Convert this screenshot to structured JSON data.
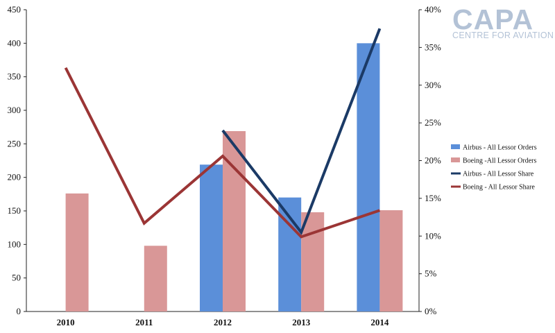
{
  "logo": {
    "main": "CAPA",
    "sub": "CENTRE FOR AVIATION"
  },
  "chart_data": {
    "type": "bar",
    "title": "",
    "categories": [
      "2010",
      "2011",
      "2012",
      "2013",
      "2014"
    ],
    "y_left": {
      "min": 0,
      "max": 450,
      "step": 50,
      "ticks": [
        "0",
        "50",
        "100",
        "150",
        "200",
        "250",
        "300",
        "350",
        "400",
        "450"
      ]
    },
    "y_right": {
      "min": 0,
      "max": 40,
      "step": 5,
      "ticks": [
        "0%",
        "5%",
        "10%",
        "15%",
        "20%",
        "25%",
        "30%",
        "35%",
        "40%"
      ]
    },
    "grid": false,
    "legend_position": "right",
    "series": [
      {
        "name": "Airbus - All Lessor Orders",
        "kind": "bar",
        "axis": "left",
        "color": "#5b8fd9",
        "values": [
          null,
          null,
          219,
          170,
          400
        ]
      },
      {
        "name": "Boeing -All  Lessor Orders",
        "kind": "bar",
        "axis": "left",
        "color": "#d99797",
        "values": [
          176,
          98,
          269,
          148,
          151
        ]
      },
      {
        "name": "Airbus - All Lessor Share",
        "kind": "line",
        "axis": "right",
        "color": "#1b3a66",
        "values": [
          null,
          null,
          24,
          10.5,
          37.5
        ]
      },
      {
        "name": "Boeing - All Lessor Share",
        "kind": "line",
        "axis": "right",
        "color": "#9b3535",
        "values": [
          32.3,
          11.7,
          20.6,
          9.9,
          13.4
        ]
      }
    ]
  }
}
